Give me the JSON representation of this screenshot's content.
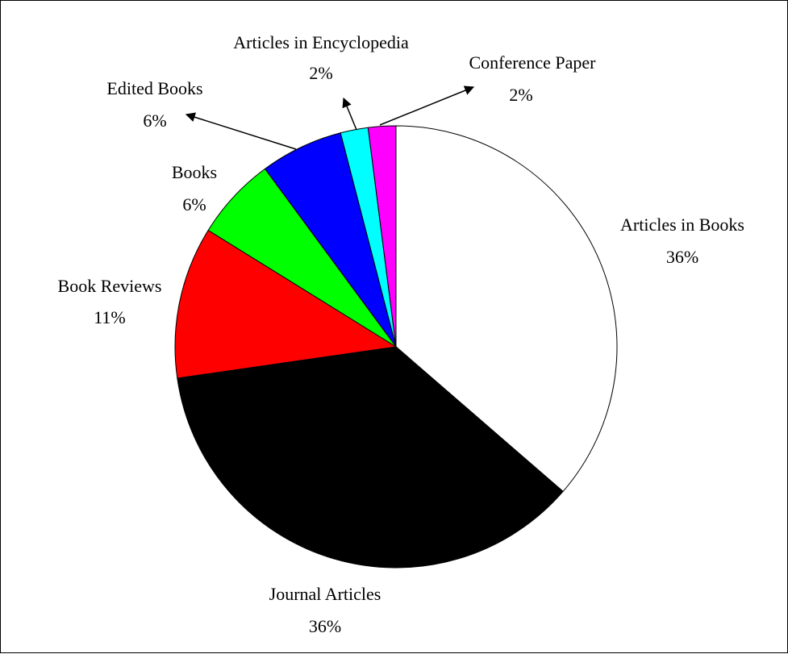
{
  "chart_data": {
    "type": "pie",
    "title": "",
    "slices": [
      {
        "name": "Articles in Books",
        "label": "36%",
        "value": 36,
        "color": "#ffffff"
      },
      {
        "name": "Journal Articles",
        "label": "36%",
        "value": 36,
        "color": "#000000"
      },
      {
        "name": "Book Reviews",
        "label": "11%",
        "value": 11,
        "color": "#ff0000"
      },
      {
        "name": "Books",
        "label": "6%",
        "value": 6,
        "color": "#00ff00"
      },
      {
        "name": "Edited Books",
        "label": "6%",
        "value": 6,
        "color": "#0000ff"
      },
      {
        "name": "Articles in Encyclopedia",
        "label": "2%",
        "value": 2,
        "color": "#00ffff"
      },
      {
        "name": "Conference Paper",
        "label": "2%",
        "value": 2,
        "color": "#ff00ff"
      }
    ],
    "start_angle": "12 o'clock",
    "direction": "clockwise",
    "legend": "none"
  }
}
